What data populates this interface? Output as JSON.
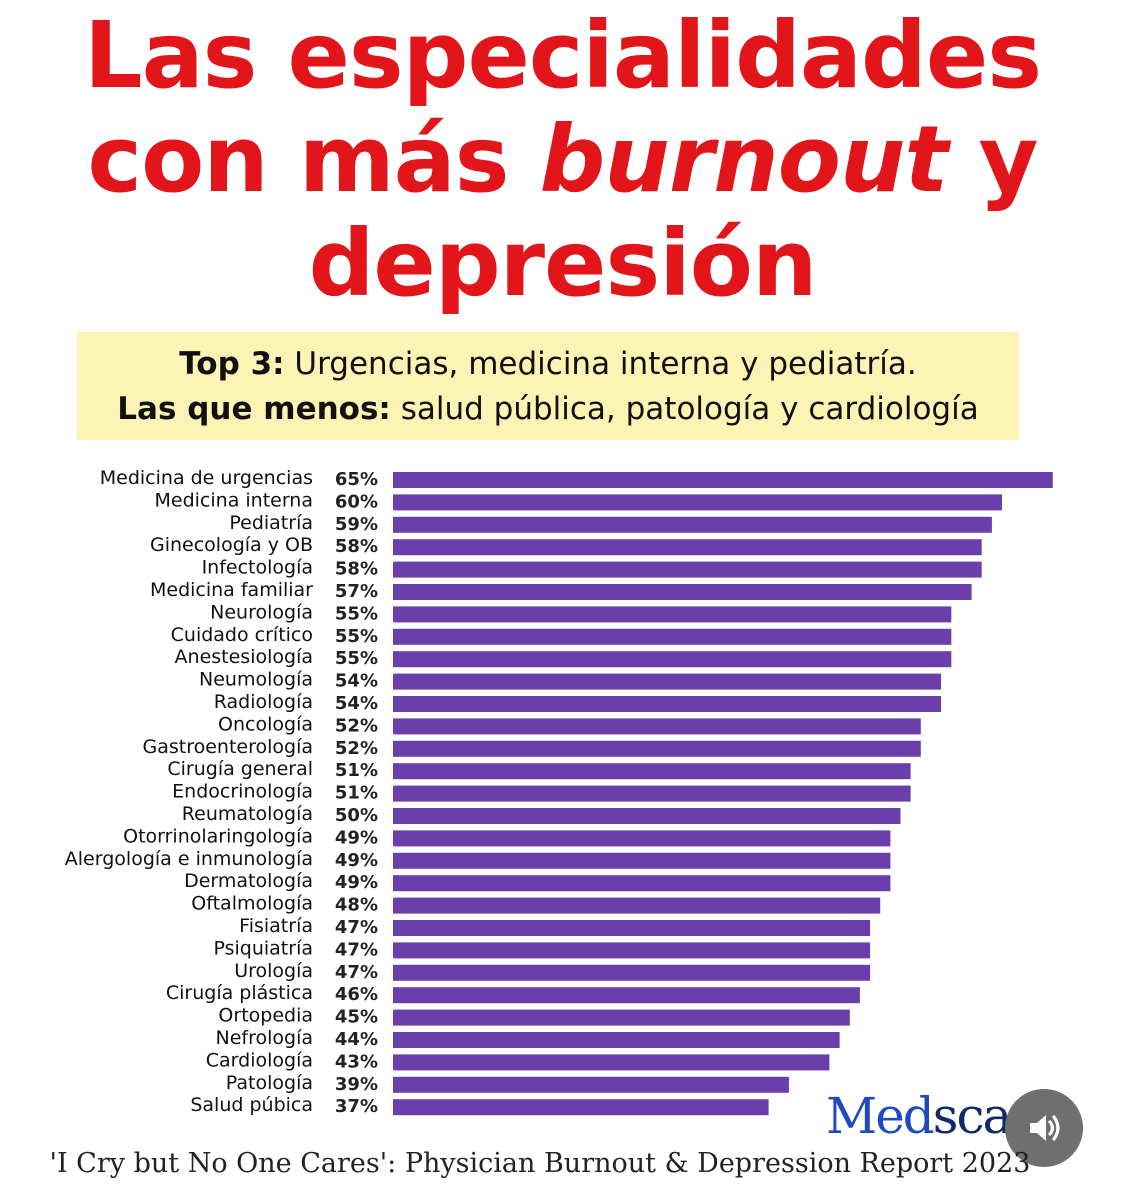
{
  "title": {
    "line1": "Las especialidades",
    "line2_a": "con más ",
    "line2_em": "burnout",
    "line2_b": " y",
    "line3": "depresión"
  },
  "highlight": {
    "top3_label": "Top 3:",
    "top3_text": " Urgencias, medicina interna y pediatría.",
    "least_label": "Las que menos:",
    "least_text": " salud pública, patología y cardiología"
  },
  "chart_data": {
    "type": "bar",
    "orientation": "horizontal",
    "title": "Las especialidades con más burnout y depresión",
    "categories": [
      "Medicina de urgencias",
      "Medicina interna",
      "Pediatría",
      "Ginecología y OB",
      "Infectología",
      "Medicina familiar",
      "Neurología",
      "Cuidado crítico",
      "Anestesiología",
      "Neumología",
      "Radiología",
      "Oncología",
      "Gastroenterología",
      "Cirugía general",
      "Endocrinología",
      "Reumatología",
      "Otorrinolaringología",
      "Alergología e inmunología",
      "Dermatología",
      "Oftalmología",
      "Fisiatría",
      "Psiquiatría",
      "Urología",
      "Cirugía plástica",
      "Ortopedia",
      "Nefrología",
      "Cardiología",
      "Patología",
      "Salud púbica"
    ],
    "values": [
      65,
      60,
      59,
      58,
      58,
      57,
      55,
      55,
      55,
      54,
      54,
      52,
      52,
      51,
      51,
      50,
      49,
      49,
      49,
      48,
      47,
      47,
      47,
      46,
      45,
      44,
      43,
      39,
      37
    ],
    "value_labels": [
      "65%",
      "60%",
      "59%",
      "58%",
      "58%",
      "57%",
      "55%",
      "55%",
      "55%",
      "54%",
      "54%",
      "52%",
      "52%",
      "51%",
      "51%",
      "50%",
      "49%",
      "49%",
      "49%",
      "48%",
      "47%",
      "47%",
      "47%",
      "46%",
      "45%",
      "44%",
      "43%",
      "39%",
      "37%"
    ],
    "bar_color": "#6a3eab",
    "xlabel": "",
    "ylabel": "",
    "grid": false
  },
  "logo": {
    "part1": "Med",
    "part2": "sca"
  },
  "caption": "'I Cry but No One Cares': Physician Burnout & Depression Report 2023",
  "icons": {
    "audio": "speaker-icon"
  },
  "colors": {
    "title": "#e2151b",
    "highlight_bg": "#fdf3b4",
    "bar": "#6a3eab"
  }
}
